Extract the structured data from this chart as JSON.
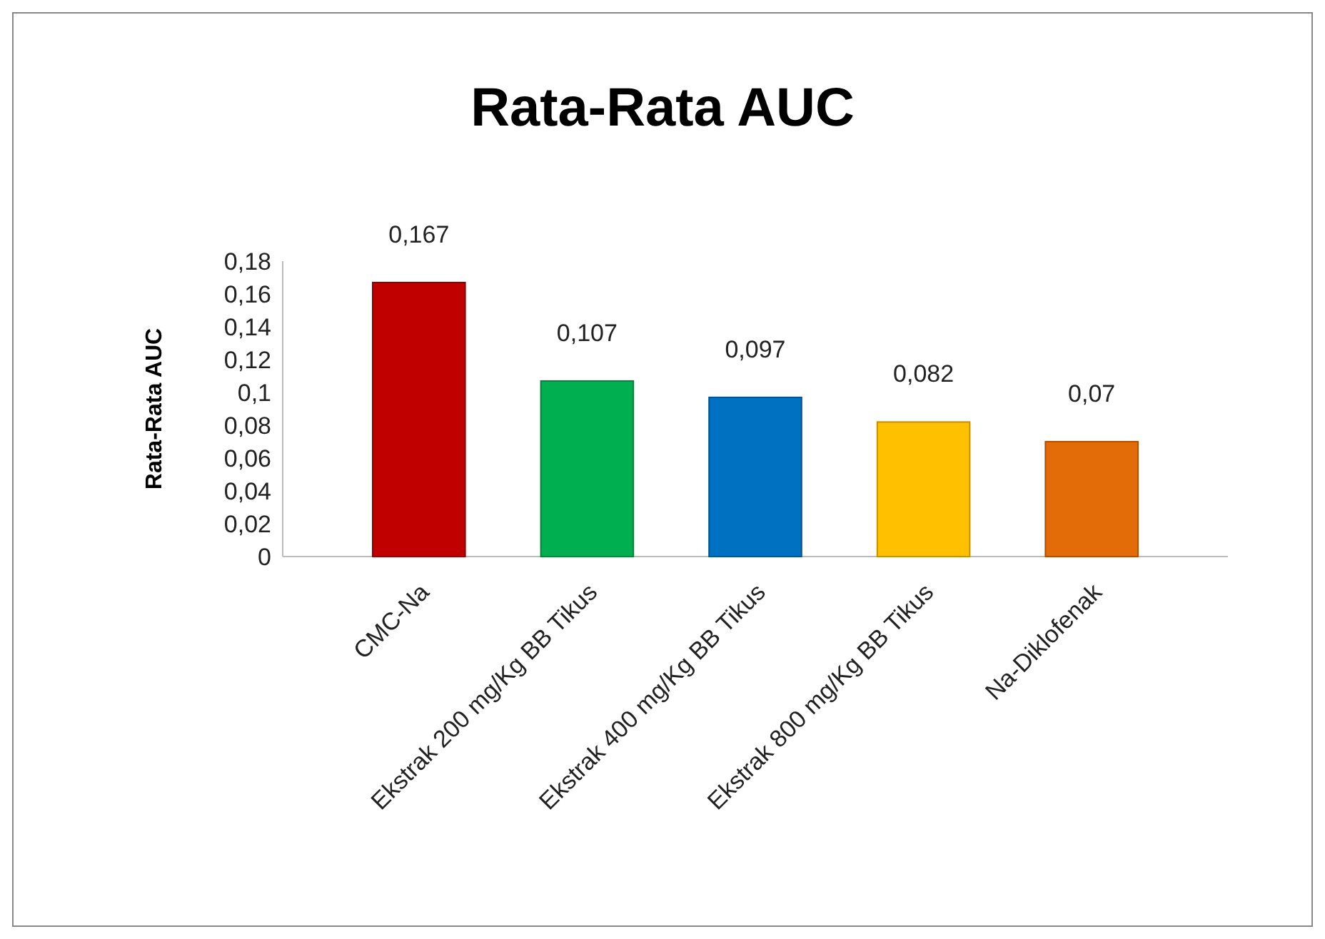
{
  "chart_data": {
    "type": "bar",
    "title": "Rata-Rata AUC",
    "ylabel": "Rata-Rata AUC",
    "categories": [
      "CMC-Na",
      "Ekstrak 200 mg/Kg BB Tikus",
      "Ekstrak 400 mg/Kg BB Tikus",
      "Ekstrak 800 mg/Kg BB Tikus",
      "Na-Diklofenak"
    ],
    "values": [
      0.167,
      0.107,
      0.097,
      0.082,
      0.07
    ],
    "colors": [
      "#c00000",
      "#00b050",
      "#0070c0",
      "#ffc000",
      "#e36c09"
    ],
    "ylim": [
      0,
      0.18
    ],
    "yticks": [
      0,
      {
        "value": 0.02,
        "label": "0,02"
      },
      {
        "value": 0.04,
        "label": "0,04"
      },
      {
        "value": 0.06,
        "label": "0,06"
      },
      {
        "value": 0.08,
        "label": "0,08"
      },
      {
        "value": 0.1,
        "label": "0,1"
      },
      {
        "value": 0.12,
        "label": "0,12"
      },
      {
        "value": 0.14,
        "label": "0,14"
      },
      {
        "value": 0.16,
        "label": "0,16"
      },
      {
        "value": 0.18,
        "label": "0,18"
      }
    ],
    "value_labels": [
      "0,167",
      "0,107",
      "0,097",
      "0,082",
      "0,07"
    ],
    "grid": false
  }
}
